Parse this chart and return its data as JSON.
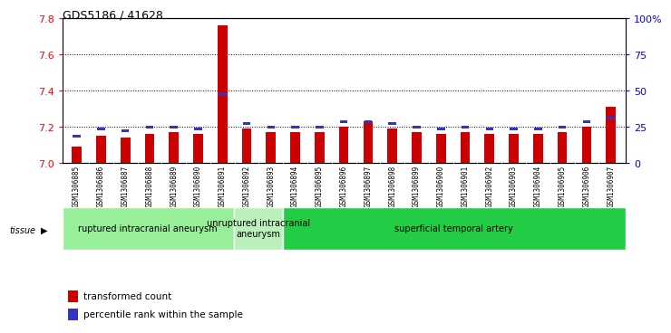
{
  "title": "GDS5186 / 41628",
  "samples": [
    "GSM1306885",
    "GSM1306886",
    "GSM1306887",
    "GSM1306888",
    "GSM1306889",
    "GSM1306890",
    "GSM1306891",
    "GSM1306892",
    "GSM1306893",
    "GSM1306894",
    "GSM1306895",
    "GSM1306896",
    "GSM1306897",
    "GSM1306898",
    "GSM1306899",
    "GSM1306900",
    "GSM1306901",
    "GSM1306902",
    "GSM1306903",
    "GSM1306904",
    "GSM1306905",
    "GSM1306906",
    "GSM1306907"
  ],
  "red_values": [
    7.09,
    7.15,
    7.14,
    7.16,
    7.17,
    7.16,
    7.76,
    7.19,
    7.17,
    7.17,
    7.17,
    7.2,
    7.23,
    7.19,
    7.17,
    7.16,
    7.17,
    7.16,
    7.16,
    7.16,
    7.17,
    7.2,
    7.31
  ],
  "blue_values": [
    7.14,
    7.18,
    7.17,
    7.19,
    7.19,
    7.18,
    7.37,
    7.21,
    7.19,
    7.19,
    7.19,
    7.22,
    7.22,
    7.21,
    7.19,
    7.18,
    7.19,
    7.18,
    7.18,
    7.18,
    7.19,
    7.22,
    7.24
  ],
  "ylim_left": [
    7.0,
    7.8
  ],
  "ylim_right": [
    0,
    100
  ],
  "yticks_left": [
    7.0,
    7.2,
    7.4,
    7.6,
    7.8
  ],
  "yticks_right": [
    0,
    25,
    50,
    75,
    100
  ],
  "ytick_labels_right": [
    "0",
    "25",
    "50",
    "75",
    "100%"
  ],
  "red_color": "#cc0000",
  "blue_color": "#3333cc",
  "plot_bg": "#ffffff",
  "xtick_bg": "#d8d8d8",
  "group_spans": [
    {
      "start": 0,
      "end": 7,
      "label": "ruptured intracranial aneurysm",
      "color": "#99ee99"
    },
    {
      "start": 7,
      "end": 9,
      "label": "unruptured intracranial\naneurysm",
      "color": "#bbf0bb"
    },
    {
      "start": 9,
      "end": 23,
      "label": "superficial temporal artery",
      "color": "#22cc44"
    }
  ]
}
